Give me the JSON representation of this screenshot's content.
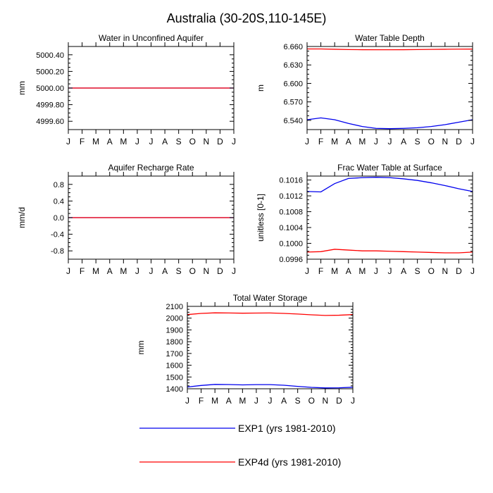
{
  "figure": {
    "title": "Australia (30-20S,110-145E)",
    "colors": {
      "EXP1": "#0000ee",
      "EXP4d": "#ff0000",
      "axis": "#000000",
      "background": "#ffffff"
    },
    "legend": [
      {
        "label": "EXP1 (yrs 1981-2010)",
        "color": "#0000ee"
      },
      {
        "label": "EXP4d (yrs 1981-2010)",
        "color": "#ff0000"
      }
    ]
  },
  "chart_data": [
    {
      "type": "line",
      "title": "Water in Unconfined Aquifer",
      "ylabel": "mm",
      "xlabel": "",
      "ylim": [
        4999.5,
        5000.5
      ],
      "yticks": [
        4999.6,
        4999.8,
        5000.0,
        5000.2,
        5000.4
      ],
      "ytick_labels": [
        "4999.60",
        "4999.80",
        "5000.00",
        "5000.20",
        "5000.40"
      ],
      "categories": [
        "J",
        "F",
        "M",
        "A",
        "M",
        "J",
        "J",
        "A",
        "S",
        "O",
        "N",
        "D",
        "J"
      ],
      "series": [
        {
          "name": "EXP1 (yrs 1981-2010)",
          "color": "#0000ee",
          "values": [
            5000,
            5000,
            5000,
            5000,
            5000,
            5000,
            5000,
            5000,
            5000,
            5000,
            5000,
            5000,
            5000
          ]
        },
        {
          "name": "EXP4d (yrs 1981-2010)",
          "color": "#ff0000",
          "values": [
            5000,
            5000,
            5000,
            5000,
            5000,
            5000,
            5000,
            5000,
            5000,
            5000,
            5000,
            5000,
            5000
          ]
        }
      ]
    },
    {
      "type": "line",
      "title": "Water Table Depth",
      "ylabel": "m",
      "xlabel": "",
      "ylim": [
        6.525,
        6.66
      ],
      "yticks": [
        6.54,
        6.57,
        6.6,
        6.63,
        6.66
      ],
      "ytick_labels": [
        "6.540",
        "6.570",
        "6.600",
        "6.630",
        "6.660"
      ],
      "categories": [
        "J",
        "F",
        "M",
        "A",
        "M",
        "J",
        "J",
        "A",
        "S",
        "O",
        "N",
        "D",
        "J"
      ],
      "series": [
        {
          "name": "EXP1 (yrs 1981-2010)",
          "color": "#0000ee",
          "values": [
            6.541,
            6.544,
            6.541,
            6.535,
            6.53,
            6.527,
            6.5265,
            6.527,
            6.528,
            6.53,
            6.533,
            6.537,
            6.541
          ]
        },
        {
          "name": "EXP4d (yrs 1981-2010)",
          "color": "#ff0000",
          "values": [
            6.656,
            6.656,
            6.6555,
            6.655,
            6.6548,
            6.6547,
            6.6547,
            6.6548,
            6.655,
            6.6553,
            6.6555,
            6.6557,
            6.6558
          ]
        }
      ]
    },
    {
      "type": "line",
      "title": "Aquifer Recharge Rate",
      "ylabel": "mm/d",
      "xlabel": "",
      "ylim": [
        -1.0,
        1.0
      ],
      "yticks": [
        -0.8,
        -0.4,
        0.0,
        0.4,
        0.8
      ],
      "ytick_labels": [
        "-0.8",
        "-0.4",
        "0.0",
        "0.4",
        "0.8"
      ],
      "categories": [
        "J",
        "F",
        "M",
        "A",
        "M",
        "J",
        "J",
        "A",
        "S",
        "O",
        "N",
        "D",
        "J"
      ],
      "series": [
        {
          "name": "EXP1 (yrs 1981-2010)",
          "color": "#0000ee",
          "values": [
            0,
            0,
            0,
            0,
            0,
            0,
            0,
            0,
            0,
            0,
            0,
            0,
            0
          ]
        },
        {
          "name": "EXP4d (yrs 1981-2010)",
          "color": "#ff0000",
          "values": [
            0,
            0,
            0,
            0,
            0,
            0,
            0,
            0,
            0,
            0,
            0,
            0,
            0
          ]
        }
      ]
    },
    {
      "type": "line",
      "title": "Frac Water Table at Surface",
      "ylabel": "unitless [0-1]",
      "xlabel": "",
      "ylim": [
        0.0996,
        0.1017
      ],
      "yticks": [
        0.0996,
        0.1,
        0.1004,
        0.1008,
        0.1012,
        0.1016
      ],
      "ytick_labels": [
        "0.0996",
        "0.1000",
        "0.1004",
        "0.1008",
        "0.1012",
        "0.1016"
      ],
      "categories": [
        "J",
        "F",
        "M",
        "A",
        "M",
        "J",
        "J",
        "A",
        "S",
        "O",
        "N",
        "D",
        "J"
      ],
      "series": [
        {
          "name": "EXP1 (yrs 1981-2010)",
          "color": "#0000ee",
          "values": [
            0.10131,
            0.1013,
            0.10151,
            0.10164,
            0.10166,
            0.10167,
            0.10166,
            0.10163,
            0.10159,
            0.10153,
            0.10146,
            0.10138,
            0.10131
          ]
        },
        {
          "name": "EXP4d (yrs 1981-2010)",
          "color": "#ff0000",
          "values": [
            0.09978,
            0.09979,
            0.09985,
            0.09983,
            0.09981,
            0.09981,
            0.0998,
            0.09979,
            0.09978,
            0.09977,
            0.09976,
            0.09976,
            0.09978
          ]
        }
      ]
    },
    {
      "type": "line",
      "title": "Total Water Storage",
      "ylabel": "mm",
      "xlabel": "",
      "ylim": [
        1400,
        2100
      ],
      "yticks": [
        1400,
        1500,
        1600,
        1700,
        1800,
        1900,
        2000,
        2100
      ],
      "ytick_labels": [
        "1400",
        "1500",
        "1600",
        "1700",
        "1800",
        "1900",
        "2000",
        "2100"
      ],
      "categories": [
        "J",
        "F",
        "M",
        "A",
        "M",
        "J",
        "J",
        "A",
        "S",
        "O",
        "N",
        "D",
        "J"
      ],
      "series": [
        {
          "name": "EXP1 (yrs 1981-2010)",
          "color": "#0000ee",
          "values": [
            1415,
            1428,
            1437,
            1436,
            1433,
            1435,
            1435,
            1430,
            1420,
            1412,
            1407,
            1408,
            1413
          ]
        },
        {
          "name": "EXP4d (yrs 1981-2010)",
          "color": "#ff0000",
          "values": [
            2030,
            2040,
            2045,
            2044,
            2042,
            2043,
            2044,
            2040,
            2035,
            2028,
            2023,
            2025,
            2030
          ]
        }
      ]
    }
  ]
}
